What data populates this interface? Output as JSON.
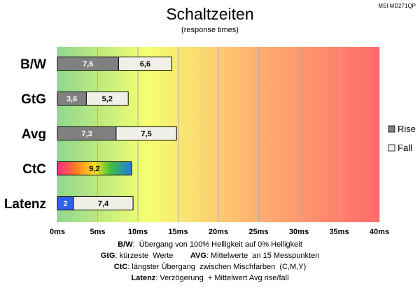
{
  "chart_data": {
    "type": "bar",
    "stacked": true,
    "orientation": "horizontal",
    "title": "Schaltzeiten",
    "subtitle": "(response times)",
    "model": "MSI MD271QP",
    "categories": [
      "B/W",
      "GtG",
      "Avg",
      "CtC",
      "Latenz"
    ],
    "series": [
      {
        "name": "Rise",
        "values": [
          7.6,
          3.6,
          7.3,
          null,
          null
        ],
        "color": "#808080"
      },
      {
        "name": "Fall",
        "values": [
          6.6,
          5.2,
          7.5,
          null,
          7.4
        ],
        "color": "#f0efe8"
      }
    ],
    "special": {
      "ctc": {
        "category": "CtC",
        "value": 9.2,
        "label": "9,2",
        "style": "rainbow"
      },
      "latency": {
        "category": "Latenz",
        "value": 2,
        "label": "2",
        "color": "#2f5ff0"
      }
    },
    "value_labels": [
      [
        "7,6",
        "6,6"
      ],
      [
        "3,6",
        "5,2"
      ],
      [
        "7,3",
        "7,5"
      ],
      [
        "9,2"
      ],
      [
        "2",
        "7,4"
      ]
    ],
    "xlim": [
      0,
      40
    ],
    "xticks": [
      0,
      5,
      10,
      15,
      20,
      25,
      30,
      35,
      40
    ],
    "xtick_labels": [
      "0ms",
      "5ms",
      "10ms",
      "15ms",
      "20ms",
      "25ms",
      "30ms",
      "35ms",
      "40ms"
    ],
    "grid": true,
    "legend_position": "right",
    "background_gradient": [
      "#8fd88f",
      "#f5ff70",
      "#ffb070",
      "#ff6a6a"
    ]
  },
  "notes": [
    {
      "parts": [
        {
          "b": true,
          "t": "B/W"
        },
        {
          "b": false,
          "t": ":  Übergang von 100% Helligkeit auf 0% Helligkeit"
        }
      ]
    },
    {
      "parts": [
        {
          "b": true,
          "t": "GtG"
        },
        {
          "b": false,
          "t": ": kürzeste  Werte        "
        },
        {
          "b": true,
          "t": "AVG"
        },
        {
          "b": false,
          "t": ": Mittelwerte  an 15 Messpunkten"
        }
      ]
    },
    {
      "parts": [
        {
          "b": true,
          "t": "CtC"
        },
        {
          "b": false,
          "t": ": längster Übergang  zwischen Mischfarben  (C,M,Y)"
        }
      ]
    },
    {
      "parts": [
        {
          "b": true,
          "t": "Latenz"
        },
        {
          "b": false,
          "t": ": Verzögerung  + Mittelwert Avg rise/fall"
        }
      ]
    }
  ]
}
